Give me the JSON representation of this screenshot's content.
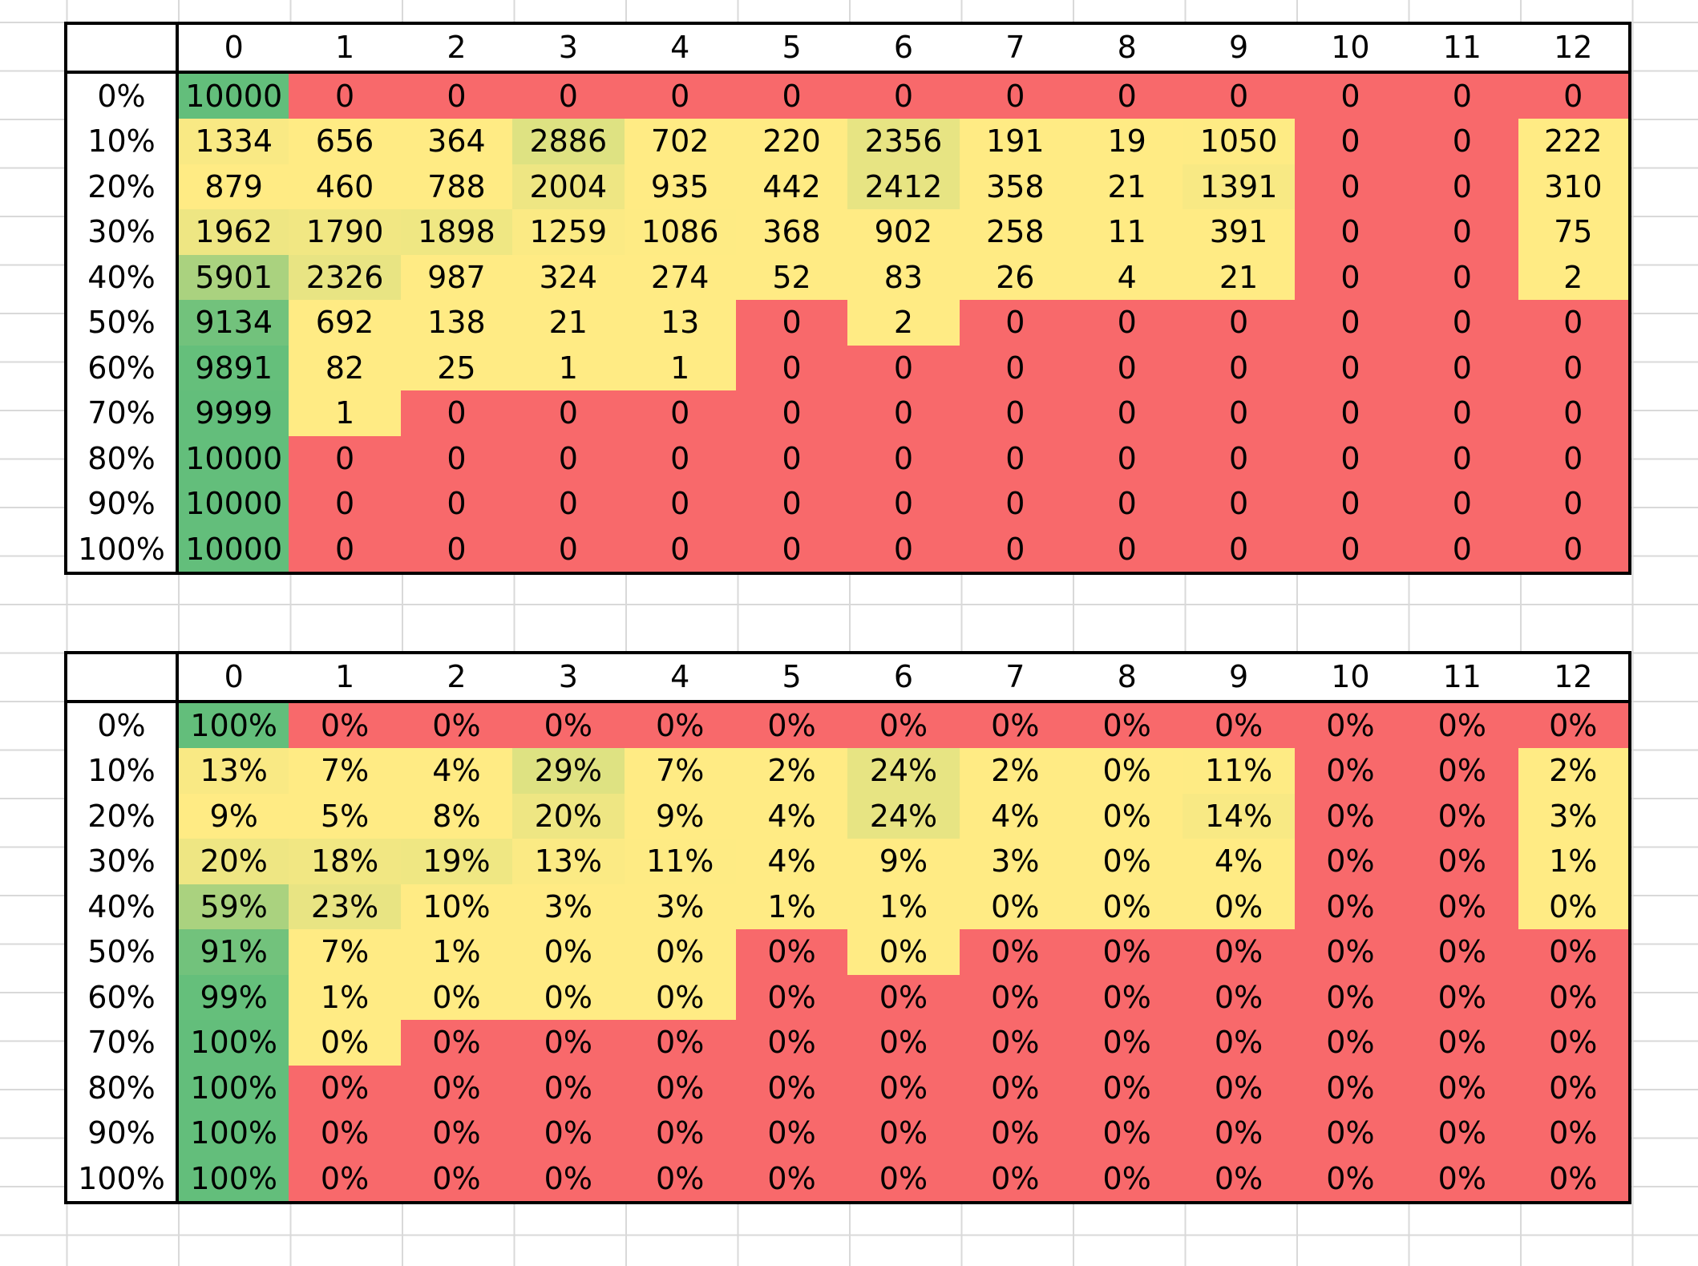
{
  "columns": [
    "0",
    "1",
    "2",
    "3",
    "4",
    "5",
    "6",
    "7",
    "8",
    "9",
    "10",
    "11",
    "12"
  ],
  "rows": [
    "0%",
    "10%",
    "20%",
    "30%",
    "40%",
    "50%",
    "60%",
    "70%",
    "80%",
    "90%",
    "100%"
  ],
  "colors": {
    "red": "#f8696b",
    "yellow": "#ffeb84",
    "green": "#63be7b"
  },
  "counts_table": [
    [
      "10000",
      "0",
      "0",
      "0",
      "0",
      "0",
      "0",
      "0",
      "0",
      "0",
      "0",
      "0",
      "0"
    ],
    [
      "1334",
      "656",
      "364",
      "2886",
      "702",
      "220",
      "2356",
      "191",
      "19",
      "1050",
      "0",
      "0",
      "222"
    ],
    [
      "879",
      "460",
      "788",
      "2004",
      "935",
      "442",
      "2412",
      "358",
      "21",
      "1391",
      "0",
      "0",
      "310"
    ],
    [
      "1962",
      "1790",
      "1898",
      "1259",
      "1086",
      "368",
      "902",
      "258",
      "11",
      "391",
      "0",
      "0",
      "75"
    ],
    [
      "5901",
      "2326",
      "987",
      "324",
      "274",
      "52",
      "83",
      "26",
      "4",
      "21",
      "0",
      "0",
      "2"
    ],
    [
      "9134",
      "692",
      "138",
      "21",
      "13",
      "0",
      "2",
      "0",
      "0",
      "0",
      "0",
      "0",
      "0"
    ],
    [
      "9891",
      "82",
      "25",
      "1",
      "1",
      "0",
      "0",
      "0",
      "0",
      "0",
      "0",
      "0",
      "0"
    ],
    [
      "9999",
      "1",
      "0",
      "0",
      "0",
      "0",
      "0",
      "0",
      "0",
      "0",
      "0",
      "0",
      "0"
    ],
    [
      "10000",
      "0",
      "0",
      "0",
      "0",
      "0",
      "0",
      "0",
      "0",
      "0",
      "0",
      "0",
      "0"
    ],
    [
      "10000",
      "0",
      "0",
      "0",
      "0",
      "0",
      "0",
      "0",
      "0",
      "0",
      "0",
      "0",
      "0"
    ],
    [
      "10000",
      "0",
      "0",
      "0",
      "0",
      "0",
      "0",
      "0",
      "0",
      "0",
      "0",
      "0",
      "0"
    ]
  ],
  "percent_table": [
    [
      "100%",
      "0%",
      "0%",
      "0%",
      "0%",
      "0%",
      "0%",
      "0%",
      "0%",
      "0%",
      "0%",
      "0%",
      "0%"
    ],
    [
      "13%",
      "7%",
      "4%",
      "29%",
      "7%",
      "2%",
      "24%",
      "2%",
      "0%",
      "11%",
      "0%",
      "0%",
      "2%"
    ],
    [
      "9%",
      "5%",
      "8%",
      "20%",
      "9%",
      "4%",
      "24%",
      "4%",
      "0%",
      "14%",
      "0%",
      "0%",
      "3%"
    ],
    [
      "20%",
      "18%",
      "19%",
      "13%",
      "11%",
      "4%",
      "9%",
      "3%",
      "0%",
      "4%",
      "0%",
      "0%",
      "1%"
    ],
    [
      "59%",
      "23%",
      "10%",
      "3%",
      "3%",
      "1%",
      "1%",
      "0%",
      "0%",
      "0%",
      "0%",
      "0%",
      "0%"
    ],
    [
      "91%",
      "7%",
      "1%",
      "0%",
      "0%",
      "0%",
      "0%",
      "0%",
      "0%",
      "0%",
      "0%",
      "0%",
      "0%"
    ],
    [
      "99%",
      "1%",
      "0%",
      "0%",
      "0%",
      "0%",
      "0%",
      "0%",
      "0%",
      "0%",
      "0%",
      "0%",
      "0%"
    ],
    [
      "100%",
      "0%",
      "0%",
      "0%",
      "0%",
      "0%",
      "0%",
      "0%",
      "0%",
      "0%",
      "0%",
      "0%",
      "0%"
    ],
    [
      "100%",
      "0%",
      "0%",
      "0%",
      "0%",
      "0%",
      "0%",
      "0%",
      "0%",
      "0%",
      "0%",
      "0%",
      "0%"
    ],
    [
      "100%",
      "0%",
      "0%",
      "0%",
      "0%",
      "0%",
      "0%",
      "0%",
      "0%",
      "0%",
      "0%",
      "0%",
      "0%"
    ],
    [
      "100%",
      "0%",
      "0%",
      "0%",
      "0%",
      "0%",
      "0%",
      "0%",
      "0%",
      "0%",
      "0%",
      "0%",
      "0%"
    ]
  ]
}
